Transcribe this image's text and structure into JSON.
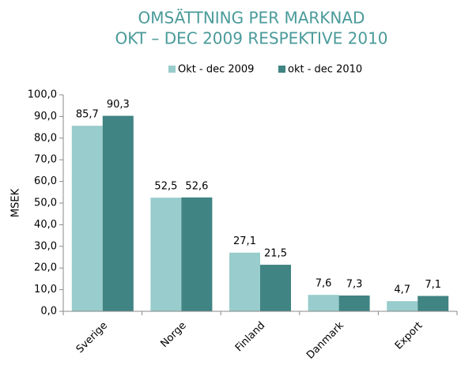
{
  "chart_data": {
    "type": "bar",
    "title": "OMSÄTTNING PER MARKNAD",
    "subtitle": "OKT – DEC 2009 RESPEKTIVE 2010",
    "y_label": "MSEK",
    "categories": [
      "Sverige",
      "Norge",
      "Finland",
      "Danmark",
      "Export"
    ],
    "series": [
      {
        "name": "Okt - dec 2009",
        "color": "#99cccc",
        "values": [
          85.7,
          52.5,
          27.1,
          7.6,
          4.7
        ],
        "value_labels": [
          "85,7",
          "52,5",
          "27,1",
          "7,6",
          "4,7"
        ]
      },
      {
        "name": "okt - dec 2010",
        "color": "#408483",
        "values": [
          90.3,
          52.6,
          21.5,
          7.3,
          7.1
        ],
        "value_labels": [
          "90,3",
          "52,6",
          "21,5",
          "7,3",
          "7,1"
        ]
      }
    ],
    "ylim": [
      0,
      100
    ],
    "yticks": [
      {
        "value": 0,
        "label": "0,0"
      },
      {
        "value": 10,
        "label": "10,0"
      },
      {
        "value": 20,
        "label": "20,0"
      },
      {
        "value": 30,
        "label": "30,0"
      },
      {
        "value": 40,
        "label": "40,0"
      },
      {
        "value": 50,
        "label": "50,0"
      },
      {
        "value": 60,
        "label": "60,0"
      },
      {
        "value": 70,
        "label": "70,0"
      },
      {
        "value": 80,
        "label": "80,0"
      },
      {
        "value": 90,
        "label": "90,0"
      },
      {
        "value": 100,
        "label": "100,0"
      }
    ],
    "legend": "top",
    "grid": false
  }
}
